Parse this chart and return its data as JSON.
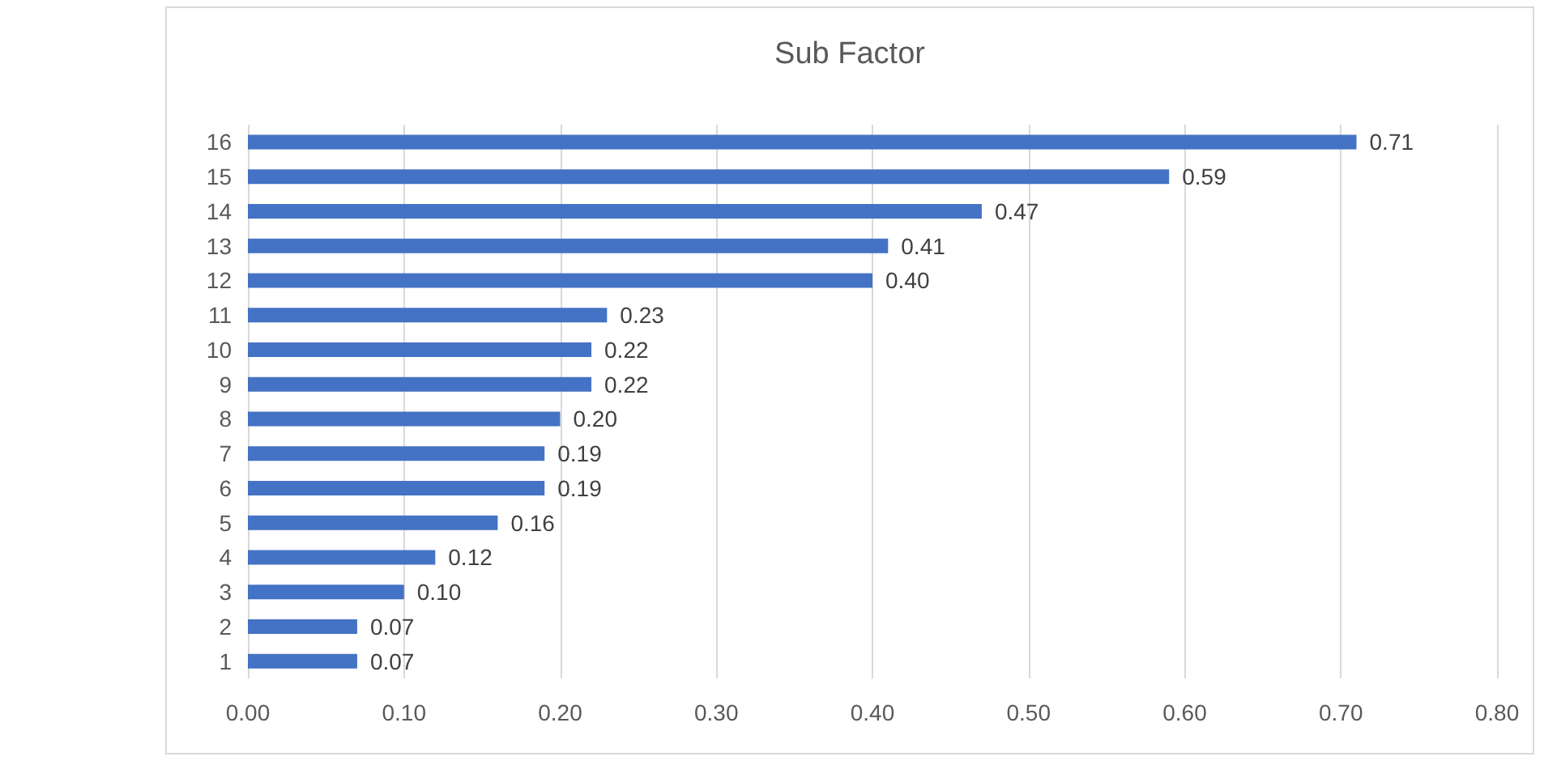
{
  "chart_data": {
    "type": "bar",
    "orientation": "horizontal",
    "title": "Sub Factor",
    "categories": [
      "16",
      "15",
      "14",
      "13",
      "12",
      "11",
      "10",
      "9",
      "8",
      "7",
      "6",
      "5",
      "4",
      "3",
      "2",
      "1"
    ],
    "values": [
      0.71,
      0.59,
      0.47,
      0.41,
      0.4,
      0.23,
      0.22,
      0.22,
      0.2,
      0.19,
      0.19,
      0.16,
      0.12,
      0.1,
      0.07,
      0.07
    ],
    "value_labels": [
      "0.71",
      "0.59",
      "0.47",
      "0.41",
      "0.40",
      "0.23",
      "0.22",
      "0.22",
      "0.20",
      "0.19",
      "0.19",
      "0.16",
      "0.12",
      "0.10",
      "0.07",
      "0.07"
    ],
    "color": "#4472c4",
    "xlim": [
      0,
      0.8
    ],
    "xticks": [
      {
        "value": 0,
        "label": "0.00"
      },
      {
        "value": 0.1,
        "label": "0.10"
      },
      {
        "value": 0.2,
        "label": "0.20"
      },
      {
        "value": 0.3,
        "label": "0.30"
      },
      {
        "value": 0.4,
        "label": "0.40"
      },
      {
        "value": 0.5,
        "label": "0.50"
      },
      {
        "value": 0.6,
        "label": "0.60"
      },
      {
        "value": 0.7,
        "label": "0.70"
      },
      {
        "value": 0.8,
        "label": "0.80"
      }
    ],
    "grid": "x"
  }
}
